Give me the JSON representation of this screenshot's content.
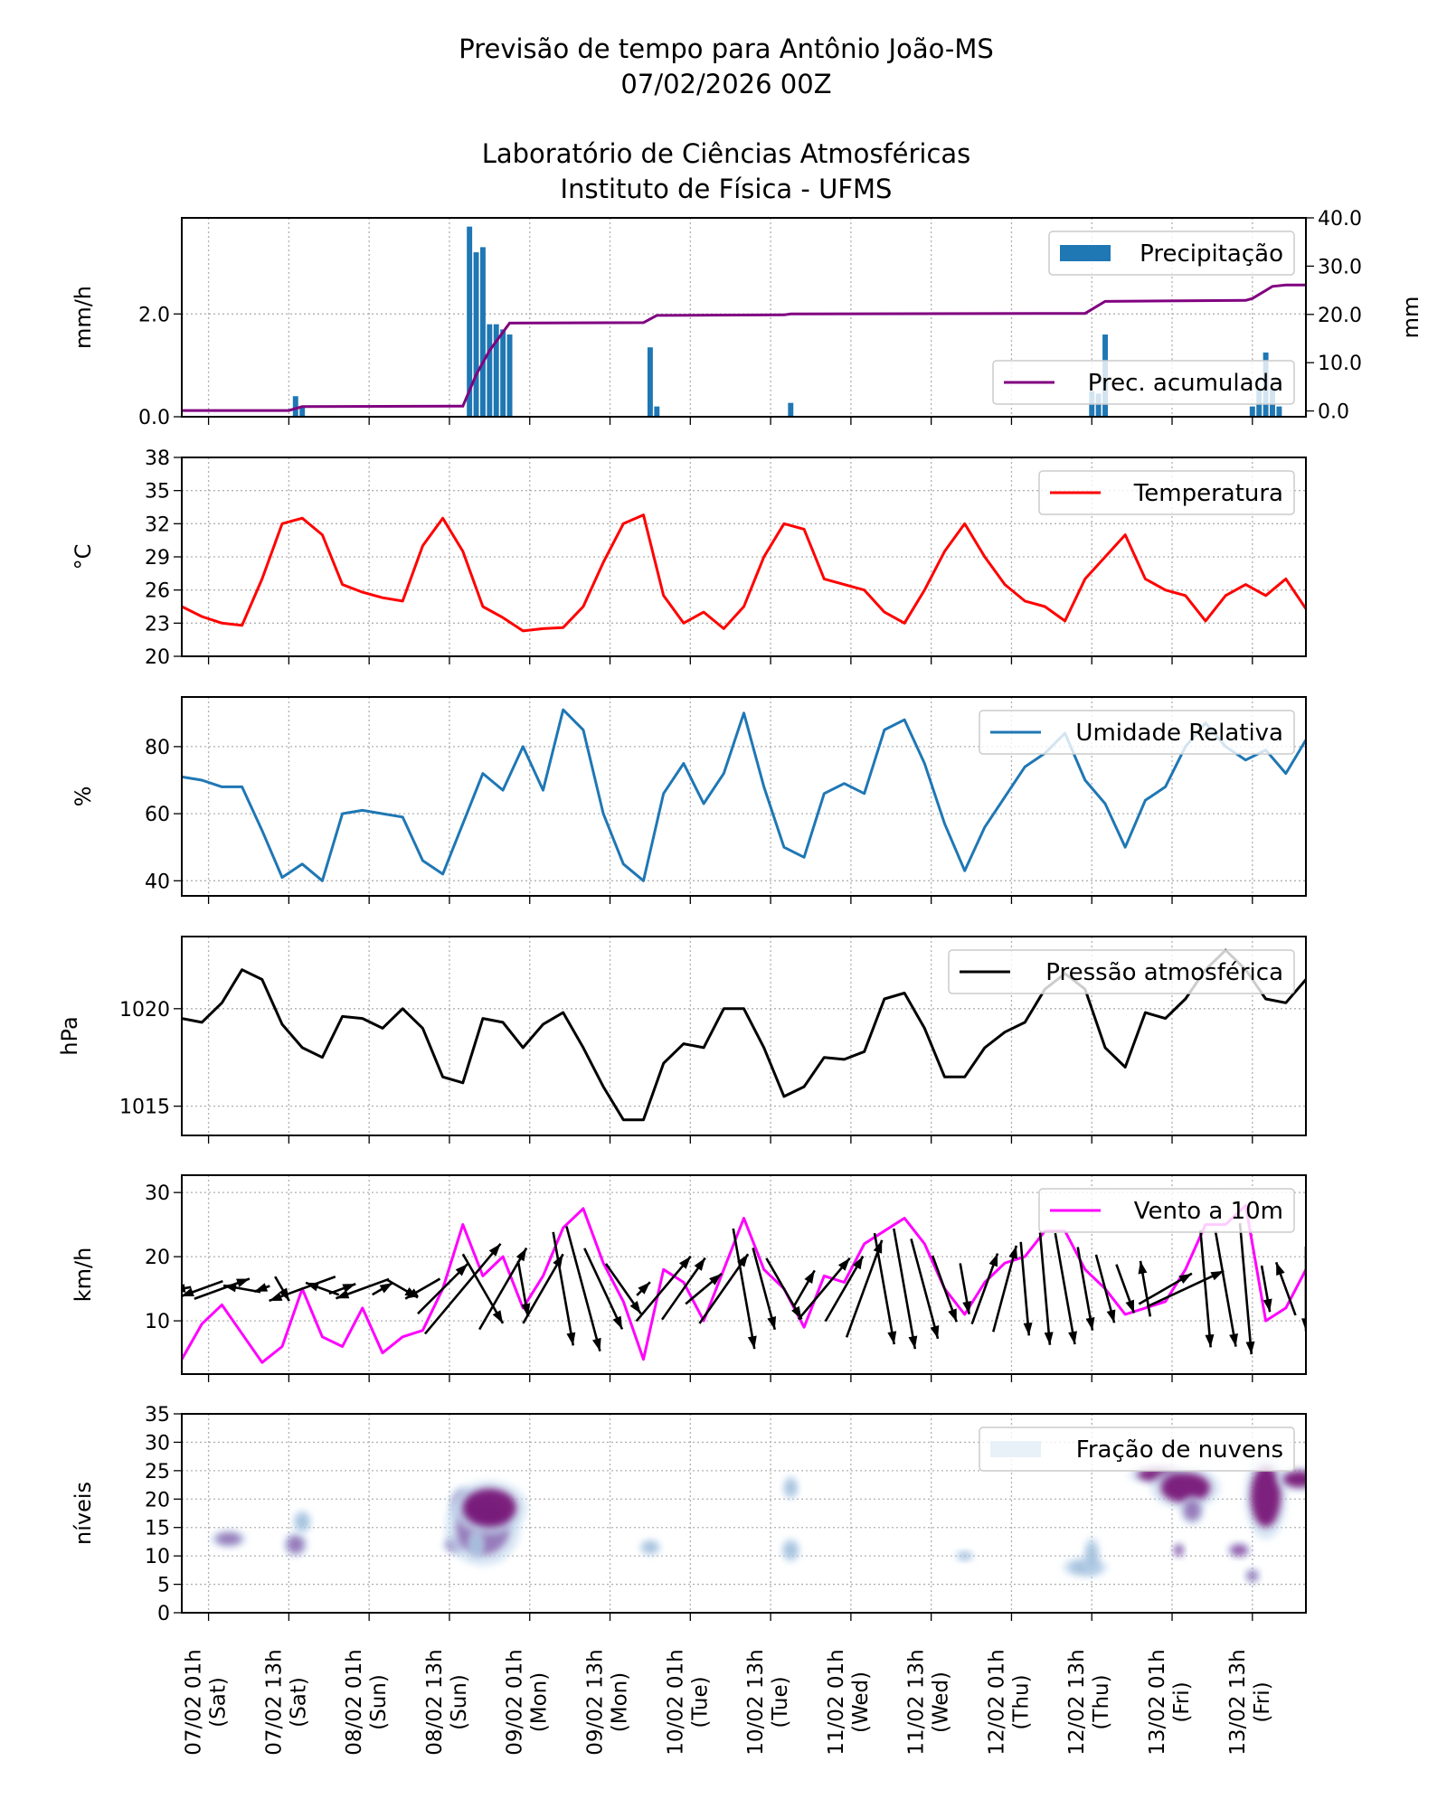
{
  "title": {
    "line1": "Previsão de tempo para Antônio João-MS",
    "line2": "07/02/2026 00Z",
    "line3": "Laboratório de Ciências Atmosféricas",
    "line4": "Instituto de Física - UFMS"
  },
  "x_ticks": [
    {
      "time": "07/02 01h",
      "day": "(Sat)"
    },
    {
      "time": "07/02 13h",
      "day": "(Sat)"
    },
    {
      "time": "08/02 01h",
      "day": "(Sun)"
    },
    {
      "time": "08/02 13h",
      "day": "(Sun)"
    },
    {
      "time": "09/02 01h",
      "day": "(Mon)"
    },
    {
      "time": "09/02 13h",
      "day": "(Mon)"
    },
    {
      "time": "10/02 01h",
      "day": "(Tue)"
    },
    {
      "time": "10/02 13h",
      "day": "(Tue)"
    },
    {
      "time": "11/02 01h",
      "day": "(Wed)"
    },
    {
      "time": "11/02 13h",
      "day": "(Wed)"
    },
    {
      "time": "12/02 01h",
      "day": "(Thu)"
    },
    {
      "time": "12/02 13h",
      "day": "(Thu)"
    },
    {
      "time": "13/02 01h",
      "day": "(Fri)"
    },
    {
      "time": "13/02 13h",
      "day": "(Fri)"
    }
  ],
  "x_range": [
    "06/02 21h",
    "13/02 21h"
  ],
  "chart_data": [
    {
      "type": "bar",
      "ylabel": "mm/h",
      "ylim": [
        0,
        3.87
      ],
      "yticks": [
        "0.0",
        "2.0"
      ],
      "grid": true,
      "legend": "top-right",
      "series_name": "Precipitação",
      "color": "#1f77b4",
      "bars": [
        {
          "time": "07/02 14h",
          "value": 0.4
        },
        {
          "time": "07/02 15h",
          "value": 0.2
        },
        {
          "time": "08/02 16h",
          "value": 3.7
        },
        {
          "time": "08/02 17h",
          "value": 3.2
        },
        {
          "time": "08/02 18h",
          "value": 3.3
        },
        {
          "time": "08/02 19h",
          "value": 1.8
        },
        {
          "time": "08/02 20h",
          "value": 1.8
        },
        {
          "time": "08/02 21h",
          "value": 1.7
        },
        {
          "time": "08/02 22h",
          "value": 1.6
        },
        {
          "time": "09/02 19h",
          "value": 1.35
        },
        {
          "time": "09/02 20h",
          "value": 0.2
        },
        {
          "time": "10/02 16h",
          "value": 0.27
        },
        {
          "time": "12/02 13h",
          "value": 0.5
        },
        {
          "time": "12/02 14h",
          "value": 0.45
        },
        {
          "time": "12/02 15h",
          "value": 1.6
        },
        {
          "time": "13/02 13h",
          "value": 0.2
        },
        {
          "time": "13/02 14h",
          "value": 0.55
        },
        {
          "time": "13/02 15h",
          "value": 1.25
        },
        {
          "time": "13/02 16h",
          "value": 0.55
        },
        {
          "time": "13/02 17h",
          "value": 0.2
        }
      ],
      "secondary": {
        "type": "line",
        "ylabel": "mm",
        "ylim": [
          -1.2,
          40
        ],
        "yticks": [
          "0.0",
          "10.0",
          "20.0",
          "30.0",
          "40.0"
        ],
        "series_name": "Prec. acumulada",
        "color": "#800080",
        "points": [
          {
            "time": "06/02 21h",
            "value": 0.1
          },
          {
            "time": "07/02 13h",
            "value": 0.1
          },
          {
            "time": "07/02 15h",
            "value": 0.9
          },
          {
            "time": "08/02 15h",
            "value": 1.0
          },
          {
            "time": "08/02 17h",
            "value": 7.5
          },
          {
            "time": "08/02 19h",
            "value": 12.5
          },
          {
            "time": "08/02 22h",
            "value": 18.2
          },
          {
            "time": "09/02 18h",
            "value": 18.3
          },
          {
            "time": "09/02 20h",
            "value": 19.8
          },
          {
            "time": "10/02 15h",
            "value": 19.9
          },
          {
            "time": "10/02 16h",
            "value": 20.1
          },
          {
            "time": "12/02 12h",
            "value": 20.2
          },
          {
            "time": "12/02 15h",
            "value": 22.7
          },
          {
            "time": "13/02 12h",
            "value": 22.9
          },
          {
            "time": "13/02 13h",
            "value": 23.3
          },
          {
            "time": "13/02 16h",
            "value": 25.8
          },
          {
            "time": "13/02 18h",
            "value": 26.1
          },
          {
            "time": "13/02 21h",
            "value": 26.1
          }
        ]
      }
    },
    {
      "type": "line",
      "ylabel": "$^\\circ$C",
      "ylabel_display": "°C",
      "ylim": [
        20,
        38
      ],
      "yticks": [
        "20",
        "23",
        "26",
        "29",
        "32",
        "35",
        "38"
      ],
      "grid": true,
      "legend": "top-right",
      "series_name": "Temperatura",
      "color": "#ff0000",
      "values": [
        24.5,
        23.6,
        23.0,
        22.8,
        27.0,
        32.0,
        32.5,
        31.0,
        26.5,
        25.8,
        25.3,
        25.0,
        30.0,
        32.5,
        29.5,
        24.5,
        23.5,
        22.3,
        22.5,
        22.6,
        24.5,
        28.5,
        32.0,
        32.8,
        25.5,
        23.0,
        24.0,
        22.5,
        24.5,
        29.0,
        32.0,
        31.5,
        27.0,
        26.5,
        26.0,
        24.0,
        23.0,
        26.0,
        29.5,
        32.0,
        29.0,
        26.5,
        25.0,
        24.5,
        23.2,
        27.0,
        29.0,
        31.0,
        27.0,
        26.0,
        25.5,
        23.2,
        25.5,
        26.5,
        25.5,
        27.0,
        24.3
      ]
    },
    {
      "type": "line",
      "ylabel": "%",
      "ylim": [
        35.5,
        94.8
      ],
      "yticks": [
        "40",
        "60",
        "80"
      ],
      "grid": true,
      "legend": "top-right",
      "series_name": "Umidade Relativa",
      "color": "#1f77b4",
      "values": [
        71,
        70,
        68,
        68,
        55,
        41,
        45,
        40,
        60,
        61,
        60,
        59,
        46,
        42,
        57,
        72,
        67,
        80,
        67,
        91,
        85,
        60,
        45,
        40,
        66,
        75,
        63,
        72,
        90,
        68,
        50,
        47,
        66,
        69,
        66,
        85,
        88,
        75,
        57,
        43,
        56,
        65,
        74,
        78,
        84,
        70,
        63,
        50,
        64,
        68,
        80,
        87,
        80,
        76,
        79,
        72,
        82
      ]
    },
    {
      "type": "line",
      "ylabel": "hPa",
      "ylim": [
        1013.5,
        1023.7
      ],
      "yticks": [
        "1015",
        "1020"
      ],
      "grid": true,
      "legend": "top-right",
      "series_name": "Pressão atmosférica",
      "color": "#000000",
      "values": [
        1019.5,
        1019.3,
        1020.3,
        1022.0,
        1021.5,
        1019.2,
        1018.0,
        1017.5,
        1019.6,
        1019.5,
        1019.0,
        1020.0,
        1019.0,
        1016.5,
        1016.2,
        1019.5,
        1019.3,
        1018.0,
        1019.2,
        1019.8,
        1018.0,
        1016.0,
        1014.3,
        1014.3,
        1017.2,
        1018.2,
        1018.0,
        1020.0,
        1020.0,
        1018.0,
        1015.5,
        1016.0,
        1017.5,
        1017.4,
        1017.8,
        1020.5,
        1020.8,
        1019.0,
        1016.5,
        1016.5,
        1018.0,
        1018.8,
        1019.3,
        1021.0,
        1021.8,
        1021.0,
        1018.0,
        1017.0,
        1019.8,
        1019.5,
        1020.5,
        1022.0,
        1023.0,
        1022.0,
        1020.5,
        1020.3,
        1021.5
      ]
    },
    {
      "type": "line",
      "ylabel": "km/h",
      "ylim": [
        1.7,
        32.7
      ],
      "yticks": [
        "10",
        "20",
        "30"
      ],
      "grid": true,
      "legend": "top-right",
      "series_name": "Vento a 10m",
      "color": "#ff00ff",
      "values": [
        4,
        9.5,
        12.5,
        8,
        3.5,
        6,
        15,
        7.5,
        6,
        12,
        5,
        7.5,
        8.5,
        15,
        25,
        17,
        20,
        12,
        17,
        24.5,
        27.5,
        19,
        13,
        4,
        18,
        16,
        10,
        18,
        26,
        18,
        15,
        9,
        17,
        16,
        22,
        24,
        26,
        22,
        15,
        11,
        16,
        19,
        20,
        24,
        24,
        18,
        15,
        11,
        12,
        13,
        18,
        25,
        25,
        28,
        10,
        12,
        18
      ],
      "arrow_directions_deg": [
        190,
        200,
        20,
        170,
        200,
        -60,
        200,
        160,
        20,
        200,
        30,
        -30,
        210,
        45,
        50,
        -60,
        60,
        -80,
        60,
        -80,
        -75,
        -65,
        -55,
        45,
        50,
        55,
        40,
        55,
        -80,
        -75,
        -60,
        60,
        50,
        60,
        70,
        -80,
        -80,
        -75,
        -70,
        -80,
        70,
        75,
        -85,
        -85,
        -80,
        -80,
        -75,
        -70,
        100,
        30,
        25,
        -85,
        -80,
        -85,
        -80,
        110,
        -90
      ]
    },
    {
      "type": "heatmap",
      "ylabel": "níveis",
      "ylim": [
        0,
        35
      ],
      "yticks": [
        "0",
        "5",
        "10",
        "15",
        "20",
        "25",
        "30",
        "35"
      ],
      "grid": true,
      "legend": "top-right",
      "series_name": "Fração de nuvens",
      "colormap": [
        "#f7fbff",
        "#c6dbef",
        "#9ebcda",
        "#8c6bb1",
        "#88419d",
        "#6e016b"
      ],
      "cells": [
        {
          "time": "07/02 04h",
          "level": 13,
          "dt": 1.2,
          "dl": 0.9,
          "fraction": 0.4
        },
        {
          "time": "07/02 14h",
          "level": 12,
          "dt": 0.8,
          "dl": 1.3,
          "fraction": 0.3
        },
        {
          "time": "07/02 15h",
          "level": 16,
          "dt": 0.6,
          "dl": 1.2,
          "fraction": 0.15
        },
        {
          "time": "08/02 14h",
          "level": 12,
          "dt": 0.9,
          "dl": 1.0,
          "fraction": 0.3
        },
        {
          "time": "08/02 15h",
          "level": 19,
          "dt": 0.9,
          "dl": 2.0,
          "fraction": 0.45
        },
        {
          "time": "08/02 18h",
          "level": 15,
          "dt": 2.5,
          "dl": 4.0,
          "fraction": 0.4
        },
        {
          "time": "08/02 19h",
          "level": 18.5,
          "dt": 2.5,
          "dl": 2.8,
          "fraction": 0.95
        },
        {
          "time": "08/02 17h",
          "level": 12,
          "dt": 0.5,
          "dl": 1.5,
          "fraction": 0.25
        },
        {
          "time": "09/02 19h",
          "level": 11.5,
          "dt": 0.7,
          "dl": 0.8,
          "fraction": 0.25
        },
        {
          "time": "10/02 16h",
          "level": 22,
          "dt": 0.5,
          "dl": 1.2,
          "fraction": 0.25
        },
        {
          "time": "10/02 16h",
          "level": 11,
          "dt": 0.6,
          "dl": 1.2,
          "fraction": 0.25
        },
        {
          "time": "11/02 18h",
          "level": 10,
          "dt": 0.6,
          "dl": 0.5,
          "fraction": 0.1
        },
        {
          "time": "12/02 12h",
          "level": 8,
          "dt": 1.5,
          "dl": 1.0,
          "fraction": 0.15
        },
        {
          "time": "12/02 13h",
          "level": 10,
          "dt": 0.5,
          "dl": 2.0,
          "fraction": 0.1
        },
        {
          "time": "12/02 23h",
          "level": 24.3,
          "dt": 2.0,
          "dl": 1.0,
          "fraction": 0.7
        },
        {
          "time": "13/02 03h",
          "level": 22,
          "dt": 2.3,
          "dl": 2.2,
          "fraction": 0.95
        },
        {
          "time": "13/02 04h",
          "level": 18,
          "dt": 0.8,
          "dl": 1.5,
          "fraction": 0.3
        },
        {
          "time": "13/02 02h",
          "level": 11,
          "dt": 0.4,
          "dl": 0.8,
          "fraction": 0.6
        },
        {
          "time": "13/02 11h",
          "level": 11,
          "dt": 0.8,
          "dl": 0.8,
          "fraction": 0.55
        },
        {
          "time": "13/02 13h",
          "level": 6.5,
          "dt": 0.5,
          "dl": 0.8,
          "fraction": 0.3
        },
        {
          "time": "13/02 15h",
          "level": 20.5,
          "dt": 1.4,
          "dl": 4.5,
          "fraction": 0.95
        },
        {
          "time": "13/02 20h",
          "level": 23.5,
          "dt": 1.5,
          "dl": 1.2,
          "fraction": 0.85
        }
      ]
    }
  ]
}
